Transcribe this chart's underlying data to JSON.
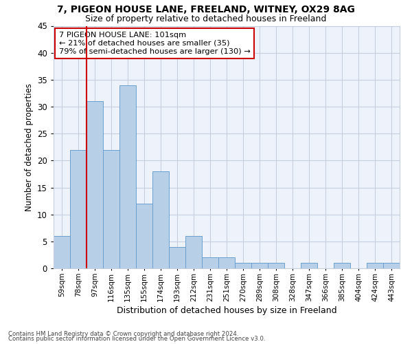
{
  "title1": "7, PIGEON HOUSE LANE, FREELAND, WITNEY, OX29 8AG",
  "title2": "Size of property relative to detached houses in Freeland",
  "xlabel": "Distribution of detached houses by size in Freeland",
  "ylabel": "Number of detached properties",
  "categories": [
    "59sqm",
    "78sqm",
    "97sqm",
    "116sqm",
    "135sqm",
    "155sqm",
    "174sqm",
    "193sqm",
    "212sqm",
    "231sqm",
    "251sqm",
    "270sqm",
    "289sqm",
    "308sqm",
    "328sqm",
    "347sqm",
    "366sqm",
    "385sqm",
    "404sqm",
    "424sqm",
    "443sqm"
  ],
  "values": [
    6,
    22,
    31,
    22,
    34,
    12,
    18,
    4,
    6,
    2,
    2,
    1,
    1,
    1,
    0,
    1,
    0,
    1,
    0,
    1,
    1
  ],
  "bar_color": "#b8cfe8",
  "bar_edge_color": "#6a9fcf",
  "annotation_title": "7 PIGEON HOUSE LANE: 101sqm",
  "annotation_line1": "← 21% of detached houses are smaller (35)",
  "annotation_line2": "79% of semi-detached houses are larger (130) →",
  "annotation_box_color": "#ffffff",
  "annotation_box_edge": "#cc0000",
  "vline_color": "#cc0000",
  "vline_x": 1.5,
  "ylim": [
    0,
    45
  ],
  "yticks": [
    0,
    5,
    10,
    15,
    20,
    25,
    30,
    35,
    40,
    45
  ],
  "background_color": "#eef2fb",
  "grid_color": "#c5cfe0",
  "footer1": "Contains HM Land Registry data © Crown copyright and database right 2024.",
  "footer2": "Contains public sector information licensed under the Open Government Licence v3.0."
}
